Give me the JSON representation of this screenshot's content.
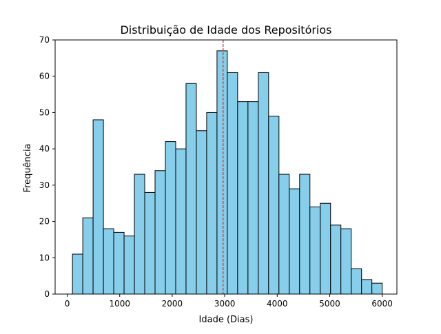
{
  "chart_data": {
    "type": "bar",
    "title": "Distribuição de Idade dos Repositórios",
    "xlabel": "Idade (Dias)",
    "ylabel": "Frequência",
    "xlim": [
      -230,
      6280
    ],
    "ylim": [
      0,
      70
    ],
    "x_ticks": [
      0,
      1000,
      2000,
      3000,
      4000,
      5000,
      6000
    ],
    "y_ticks": [
      0,
      10,
      20,
      30,
      40,
      50,
      60,
      70
    ],
    "x_tick_labels": [
      "0",
      "1000",
      "2000",
      "3000",
      "4000",
      "5000",
      "6000"
    ],
    "y_tick_labels": [
      "0",
      "10",
      "20",
      "30",
      "40",
      "50",
      "60",
      "70"
    ],
    "bin_start": 100,
    "bin_end": 6000,
    "bin_count": 30,
    "values": [
      11,
      21,
      48,
      18,
      17,
      16,
      33,
      28,
      34,
      42,
      40,
      58,
      45,
      50,
      67,
      61,
      53,
      53,
      61,
      49,
      33,
      29,
      33,
      24,
      25,
      19,
      18,
      7,
      4,
      3
    ],
    "mean_line_x": 2970,
    "bar_color": "#87ceeb",
    "edge_color": "#000000",
    "mean_line_color": "#d62728",
    "mean_line_style": "dashed",
    "grid": false,
    "legend": "none"
  }
}
